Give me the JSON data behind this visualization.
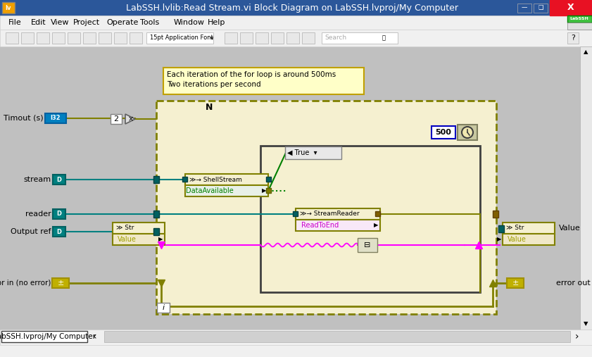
{
  "title": "LabSSH.lvlib:Read Stream.vi Block Diagram on LabSSH.lvproj/My Computer",
  "window_bg": "#f0f0f0",
  "titlebar_bg": "#2b579a",
  "titlebar_fg": "#ffffff",
  "menubar_bg": "#f0f0f0",
  "toolbar_bg": "#f0f0f0",
  "content_bg": "#c8c8c8",
  "for_loop_bg": "#f5f0d0",
  "comment_bg": "#ffffc8",
  "comment_border": "#c0a000",
  "menu_items": [
    "File",
    "Edit",
    "View",
    "Project",
    "Operate",
    "Tools",
    "Window",
    "Help"
  ],
  "status_bar_text": "LabSSH.lvproj/My Computer",
  "close_btn_color": "#e81123",
  "teal_wire": "#008080",
  "olive_wire": "#808000",
  "pink_wire": "#ff00ff",
  "node_bg": "#f5f0d0",
  "node_border": "#808000",
  "io_teal_bg": "#008080",
  "io_teal_border": "#006060",
  "error_io_bg": "#c0b000",
  "error_io_border": "#a09000"
}
